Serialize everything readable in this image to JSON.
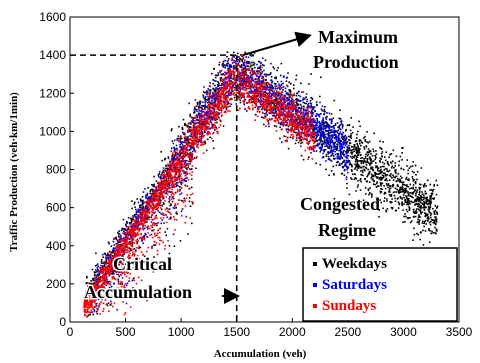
{
  "chart_data": {
    "type": "scatter",
    "xlabel": "Accumulation (veh)",
    "ylabel": "Traffic Production (veh·km/1min)",
    "xlim": [
      0,
      3500
    ],
    "ylim": [
      0,
      1600
    ],
    "x_ticks": [
      "0",
      "500",
      "1000",
      "1500",
      "2000",
      "2500",
      "3000",
      "3500"
    ],
    "y_ticks": [
      "0",
      "200",
      "400",
      "600",
      "800",
      "1000",
      "1200",
      "1400",
      "1600"
    ],
    "grid": false,
    "legend_position": "bottom-right",
    "series": [
      {
        "name": "Weekdays",
        "color": "#000000"
      },
      {
        "name": "Saturdays",
        "color": "#0000ff"
      },
      {
        "name": "Sundays",
        "color": "#ff0000"
      }
    ],
    "annotations": {
      "max_production": {
        "line1": "Maximum",
        "line2": "Production",
        "x": 1500,
        "y": 1400
      },
      "congested": {
        "line1": "Congested",
        "line2": "Regime"
      },
      "critical": {
        "line1": "Critical",
        "line2": "Accumulation",
        "x": 1500
      }
    }
  }
}
